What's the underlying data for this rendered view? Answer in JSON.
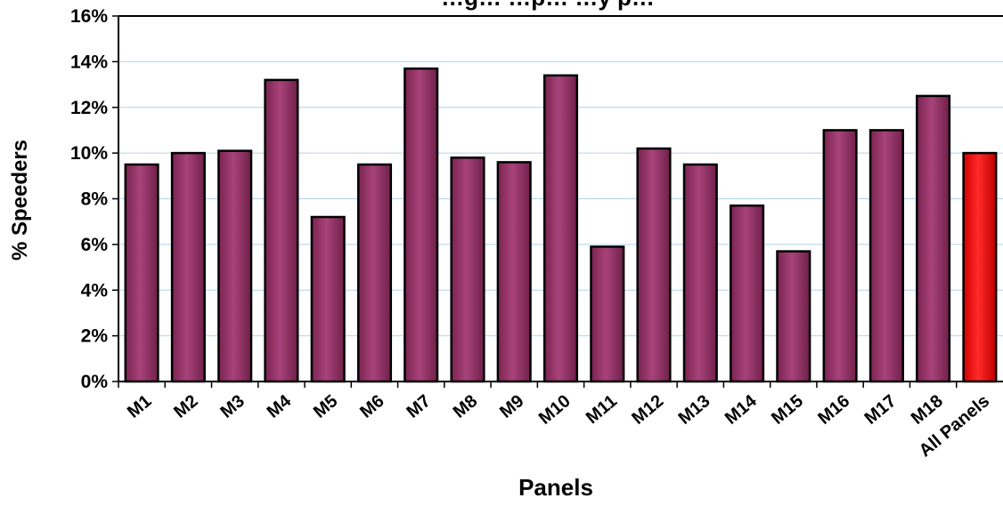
{
  "chart_data": {
    "type": "bar",
    "title": "…g… …p… …y p…",
    "xlabel": "Panels",
    "ylabel": "% Speeders",
    "ylim": [
      0,
      16
    ],
    "yticks": [
      "0%",
      "2%",
      "4%",
      "6%",
      "8%",
      "10%",
      "12%",
      "14%",
      "16%"
    ],
    "grid": true,
    "categories": [
      "M1",
      "M2",
      "M3",
      "M4",
      "M5",
      "M6",
      "M7",
      "M8",
      "M9",
      "M10",
      "M11",
      "M12",
      "M13",
      "M14",
      "M15",
      "M16",
      "M17",
      "M18",
      "All Panels"
    ],
    "values": [
      9.5,
      10.0,
      10.1,
      13.2,
      7.2,
      9.5,
      13.7,
      9.8,
      9.6,
      13.4,
      5.9,
      10.2,
      9.5,
      7.7,
      5.7,
      11.0,
      11.0,
      12.5,
      10.0
    ],
    "colors": {
      "bar": "#993366",
      "highlight": "#ff0000",
      "grid": "#b0d4e8"
    }
  }
}
